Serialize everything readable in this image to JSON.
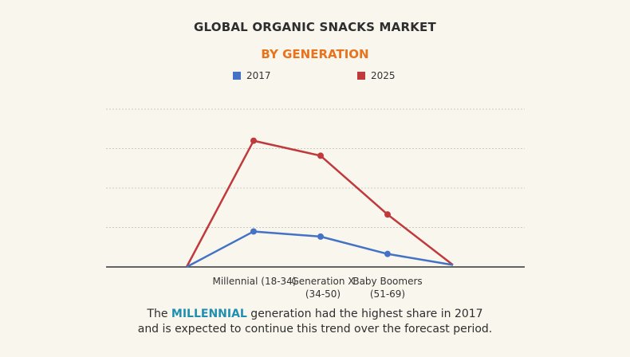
{
  "colors": {
    "background": "#f9f6ee",
    "subtitle": "#e8731c",
    "highlight": "#1e8fb0",
    "grid": "#c9c9c9",
    "axis": "#333333"
  },
  "chart_data": {
    "type": "line",
    "title": "GLOBAL ORGANIC SNACKS MARKET",
    "subtitle": "BY GENERATION",
    "xlabel": "",
    "ylabel": "",
    "categories": [
      "",
      "Millennial (18-34)",
      "Generation X\n(34-50)",
      "Baby Boomers\n(51-69)",
      ""
    ],
    "series": [
      {
        "name": "2017",
        "color": "#4472c4",
        "values": [
          0,
          0.9,
          0.77,
          0.33,
          0.05
        ]
      },
      {
        "name": "2025",
        "color": "#c0393b",
        "values": [
          0,
          3.2,
          2.82,
          1.33,
          0.05
        ]
      }
    ],
    "ylim": [
      0,
      4
    ],
    "grid": true,
    "legend": "top-center"
  },
  "caption": {
    "before": "The ",
    "highlight": "MILLENNIAL",
    "after_line1": " generation had the highest share in 2017",
    "line2": "and is expected to continue this trend over the forecast period."
  }
}
